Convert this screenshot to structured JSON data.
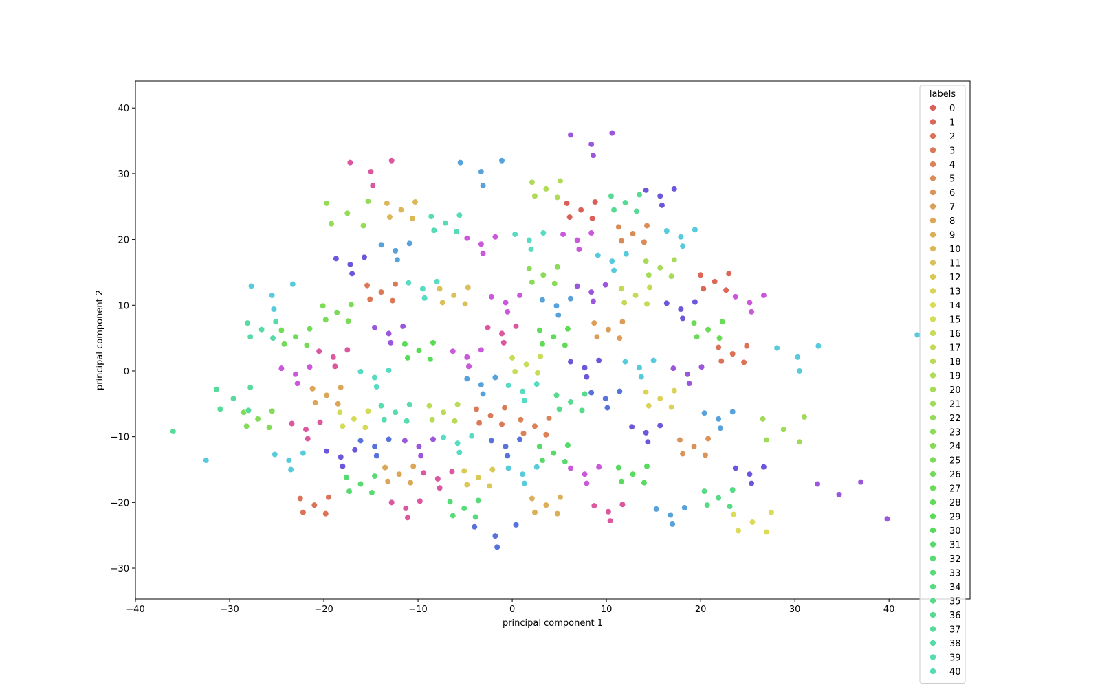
{
  "chart_data": {
    "type": "scatter",
    "xlabel": "principal component 1",
    "ylabel": "principal component 2",
    "xlim": [
      -40,
      48.6
    ],
    "ylim": [
      -34.7,
      44.1
    ],
    "xticks": [
      {
        "value": -40,
        "label": "−40"
      },
      {
        "value": -30,
        "label": "−30"
      },
      {
        "value": -20,
        "label": "−20"
      },
      {
        "value": -10,
        "label": "−10"
      },
      0,
      10,
      20,
      30,
      40
    ],
    "yticks": [
      {
        "value": -30,
        "label": "−30"
      },
      {
        "value": -20,
        "label": "−20"
      },
      {
        "value": -10,
        "label": "−10"
      },
      0,
      10,
      20,
      30,
      40
    ],
    "legend_title": "labels",
    "legend": "upper right",
    "series": [
      {
        "name": "0",
        "color": "#db5f57",
        "x": [
          7.3,
          8.8,
          5.8,
          8.5,
          6.1
        ],
        "y": [
          24.5,
          25.7,
          25.5,
          23.2,
          23.4
        ]
      },
      {
        "name": "1",
        "color": "#db6857",
        "x": [
          21.5,
          23,
          20,
          22.7,
          20.3
        ],
        "y": [
          13.6,
          14.8,
          14.6,
          12.3,
          12.5
        ]
      },
      {
        "name": "2",
        "color": "#db7157",
        "x": [
          23.4,
          24.9,
          21.9,
          24.6,
          22.2,
          -21,
          -19.5,
          -22.5,
          -19.8,
          -22.2
        ],
        "y": [
          2.6,
          3.8,
          3.6,
          1.3,
          1.5,
          -20.4,
          -19.2,
          -19.4,
          -21.7,
          -21.5
        ]
      },
      {
        "name": "3",
        "color": "#db7957",
        "x": [
          -2.3,
          -0.8,
          -3.8,
          -1.1,
          -3.5,
          -13.9,
          -12.4,
          -15.4,
          -12.7,
          -15.1
        ],
        "y": [
          -6.8,
          -5.6,
          -5.8,
          -8.1,
          -7.9,
          12,
          13.2,
          13,
          10.7,
          10.9
        ]
      },
      {
        "name": "4",
        "color": "#db8257",
        "x": [
          2.4,
          3.9,
          0.9,
          3.6,
          1.2
        ],
        "y": [
          -8.4,
          -7.2,
          -7.4,
          -9.7,
          -9.5
        ]
      },
      {
        "name": "5",
        "color": "#db8b57",
        "x": [
          12.8,
          14.3,
          11.3,
          14,
          11.6
        ],
        "y": [
          20.9,
          22.1,
          21.9,
          19.6,
          19.8
        ]
      },
      {
        "name": "6",
        "color": "#db9457",
        "x": [
          19.3,
          20.8,
          17.8,
          20.5,
          18.1
        ],
        "y": [
          -11.5,
          -10.3,
          -10.5,
          -12.8,
          -12.6
        ]
      },
      {
        "name": "7",
        "color": "#db9d57",
        "x": [
          10.2,
          11.7,
          8.7,
          11.4,
          9
        ],
        "y": [
          6.3,
          7.5,
          7.3,
          5,
          5.2
        ]
      },
      {
        "name": "8",
        "color": "#dba657",
        "x": [
          -12,
          -10.5,
          -13.5,
          -10.8,
          -13.2,
          -19.7,
          -18.2,
          -21.2,
          -18.5,
          -20.9
        ],
        "y": [
          -15.7,
          -14.5,
          -14.7,
          -17,
          -16.8,
          -3.7,
          -2.5,
          -2.7,
          -5,
          -4.8
        ]
      },
      {
        "name": "9",
        "color": "#dbaf57",
        "x": [
          3.6,
          5.1,
          2.1,
          4.8,
          2.4
        ],
        "y": [
          -20.4,
          -19.2,
          -19.4,
          -21.7,
          -21.5
        ]
      },
      {
        "name": "10",
        "color": "#dbb757",
        "x": [
          -11.8,
          -10.3,
          -13.3,
          -10.6,
          -13
        ],
        "y": [
          24.5,
          25.7,
          25.5,
          23.2,
          23.4
        ]
      },
      {
        "name": "11",
        "color": "#dbc057",
        "x": [
          -6.2,
          -4.7,
          -7.7,
          -5,
          -7.4
        ],
        "y": [
          11.5,
          12.7,
          12.5,
          10.2,
          10.4
        ]
      },
      {
        "name": "12",
        "color": "#dbc957",
        "x": [
          -3.6,
          -2.1,
          -5.1,
          -2.4,
          -4.8
        ],
        "y": [
          -16.2,
          -15,
          -15.2,
          -17.5,
          -17.3
        ]
      },
      {
        "name": "13",
        "color": "#dbd257",
        "x": [
          15.7,
          17.2,
          14.2,
          16.9,
          14.5
        ],
        "y": [
          -4.2,
          -3,
          -3.2,
          -5.5,
          -5.3
        ]
      },
      {
        "name": "14",
        "color": "#dbdb57",
        "x": [
          25.5,
          27.5,
          23.5,
          27,
          24
        ],
        "y": [
          -23,
          -21.5,
          -21.8,
          -24.5,
          -24.3
        ]
      },
      {
        "name": "15",
        "color": "#d3db57",
        "x": [
          -16.8,
          -15.3,
          -18.3,
          -15.6,
          -18
        ],
        "y": [
          -7.3,
          -6.1,
          -6.3,
          -8.6,
          -8.4
        ]
      },
      {
        "name": "16",
        "color": "#cadb57",
        "x": [
          1.5,
          3,
          0,
          2.7,
          0.3
        ],
        "y": [
          1,
          2.2,
          2,
          -0.3,
          -0.1
        ]
      },
      {
        "name": "17",
        "color": "#c1db57",
        "x": [
          13.1,
          14.6,
          11.6,
          14.3,
          11.9
        ],
        "y": [
          11.5,
          12.7,
          12.5,
          10.2,
          10.4
        ]
      },
      {
        "name": "18",
        "color": "#b9db57",
        "x": [
          -7.3,
          -5.8,
          -8.8,
          -6.1,
          -8.5
        ],
        "y": [
          -6.3,
          -5.1,
          -5.3,
          -7.6,
          -7.4
        ]
      },
      {
        "name": "19",
        "color": "#b0db57",
        "x": [
          3.6,
          5.1,
          2.1,
          4.8,
          2.4
        ],
        "y": [
          27.7,
          28.9,
          28.7,
          26.4,
          26.6
        ]
      },
      {
        "name": "20",
        "color": "#a7db57",
        "x": [
          15.7,
          17.2,
          14.2,
          16.9,
          14.5
        ],
        "y": [
          15.7,
          16.9,
          16.7,
          14.4,
          14.6
        ]
      },
      {
        "name": "21",
        "color": "#9edb57",
        "x": [
          28.8,
          31,
          26.6,
          30.5,
          27
        ],
        "y": [
          -8.9,
          -7,
          -7.3,
          -10.8,
          -10.5
        ]
      },
      {
        "name": "22",
        "color": "#95db57",
        "x": [
          -17.5,
          -15.3,
          -19.7,
          -15.8,
          -19.2
        ],
        "y": [
          24,
          25.8,
          25.5,
          22.1,
          22.4
        ]
      },
      {
        "name": "23",
        "color": "#8cdb57",
        "x": [
          3.3,
          4.8,
          1.8,
          4.5,
          2.1
        ],
        "y": [
          14.6,
          15.8,
          15.6,
          13.3,
          13.5
        ]
      },
      {
        "name": "24",
        "color": "#83db57",
        "x": [
          -27,
          -25.5,
          -28.5,
          -25.8,
          -28.2
        ],
        "y": [
          -7.3,
          -6.1,
          -6.3,
          -8.6,
          -8.4
        ]
      },
      {
        "name": "25",
        "color": "#7bdb57",
        "x": [
          -18.6,
          -17.1,
          -20.1,
          -17.4,
          -19.8
        ],
        "y": [
          8.9,
          10.1,
          9.9,
          7.6,
          7.8
        ]
      },
      {
        "name": "26",
        "color": "#72db57",
        "x": [
          -23,
          -21.5,
          -24.5,
          -21.8,
          -24.2
        ],
        "y": [
          5.2,
          6.4,
          6.2,
          3.9,
          4.1
        ]
      },
      {
        "name": "27",
        "color": "#69db57",
        "x": [
          20.8,
          22.3,
          19.3,
          22,
          19.6
        ],
        "y": [
          6.3,
          7.5,
          7.3,
          5,
          5.2
        ]
      },
      {
        "name": "28",
        "color": "#60db57",
        "x": [
          4.4,
          5.9,
          2.9,
          5.6,
          3.2
        ],
        "y": [
          5.2,
          6.4,
          6.2,
          3.9,
          4.1
        ]
      },
      {
        "name": "29",
        "color": "#58db57",
        "x": [
          -9.9,
          -8.4,
          -11.4,
          -8.7,
          -11.1
        ],
        "y": [
          3.1,
          4.3,
          4.1,
          1.8,
          2
        ]
      },
      {
        "name": "30",
        "color": "#57db5f",
        "x": [
          12.8,
          14.3,
          11.3,
          14,
          11.6
        ],
        "y": [
          -15.7,
          -14.5,
          -14.7,
          -17,
          -16.8
        ]
      },
      {
        "name": "31",
        "color": "#57db68",
        "x": [
          4.4,
          5.9,
          2.9,
          5.6,
          3.2
        ],
        "y": [
          -12.5,
          -11.3,
          -11.5,
          -13.8,
          -13.6
        ]
      },
      {
        "name": "32",
        "color": "#57db71",
        "x": [
          -16.1,
          -14.6,
          -17.6,
          -14.9,
          -17.3
        ],
        "y": [
          -17.2,
          -16,
          -16.2,
          -18.5,
          -18.3
        ]
      },
      {
        "name": "33",
        "color": "#57db79",
        "x": [
          -5.1,
          -3.6,
          -6.6,
          -3.9,
          -6.3
        ],
        "y": [
          -20.9,
          -19.7,
          -19.9,
          -22.2,
          -22
        ]
      },
      {
        "name": "34",
        "color": "#57db82",
        "x": [
          21.9,
          23.4,
          20.4,
          23.1,
          20.7
        ],
        "y": [
          -19.3,
          -18.1,
          -18.3,
          -20.6,
          -20.4
        ]
      },
      {
        "name": "35",
        "color": "#57db8b",
        "x": [
          6.2,
          7.7,
          4.7,
          7.4,
          5
        ],
        "y": [
          -4.7,
          -3.5,
          -3.7,
          -6,
          -5.8
        ]
      },
      {
        "name": "36",
        "color": "#57db94",
        "x": [
          12,
          13.5,
          10.5,
          13.2,
          10.8
        ],
        "y": [
          25.6,
          26.8,
          26.6,
          24.3,
          24.5
        ]
      },
      {
        "name": "37",
        "color": "#57db9d",
        "x": [
          -29.6,
          -27.8,
          -31.4,
          -28,
          -31,
          -36
        ],
        "y": [
          -4.2,
          -2.5,
          -2.8,
          -6,
          -5.8,
          -9.2
        ]
      },
      {
        "name": "38",
        "color": "#57dba6",
        "x": [
          -26.6,
          -25.1,
          -28.1,
          -25.4,
          -27.8
        ],
        "y": [
          6.3,
          7.5,
          7.3,
          5,
          5.2
        ]
      },
      {
        "name": "39",
        "color": "#57dbaf",
        "x": [
          -12.4,
          -10.9,
          -13.9,
          -11.2,
          -13.6
        ],
        "y": [
          -6.3,
          -5.1,
          -5.3,
          -7.6,
          -7.4
        ]
      },
      {
        "name": "40",
        "color": "#57dbb7",
        "x": [
          -7.1,
          -5.6,
          -8.6,
          -5.9,
          -8.3
        ],
        "y": [
          22.5,
          23.7,
          23.5,
          21.2,
          21.4
        ]
      },
      {
        "color": "#57dbc2",
        "x": [
          -9.5,
          -8,
          -11,
          -9.3,
          1.8,
          3.3,
          0.3,
          2,
          -5.8,
          -4.3,
          -7.3,
          -5.6,
          -14.6,
          -13.1,
          -16.1,
          -14.4,
          1.1,
          2.6,
          -0.4,
          1.3
        ],
        "y": [
          12.5,
          13.6,
          13.4,
          11.1,
          19.9,
          21,
          20.8,
          18.5,
          -11,
          -9.9,
          -10.1,
          -12.4,
          -1,
          0.1,
          -0.1,
          -2.4,
          -3.1,
          -2,
          -2.2,
          -4.5
        ]
      },
      {
        "color": "#57cbdb",
        "x": [
          10.6,
          12.1,
          9.1,
          10.8,
          17.9,
          19.4,
          16.4,
          18.1,
          13.5,
          15,
          12,
          13.7,
          1.1,
          2.6,
          -0.4,
          1.3,
          -23.7,
          -22.2,
          -25.2,
          -23.5,
          -25.5,
          -23.3,
          -27.7,
          -25.3,
          30.3,
          32.5,
          28.1,
          30.5,
          43,
          -32.5
        ],
        "y": [
          16.7,
          17.8,
          17.6,
          15.3,
          20.4,
          21.5,
          21.3,
          19,
          0.5,
          1.6,
          1.4,
          -0.9,
          -15.7,
          -14.6,
          -14.8,
          -17.1,
          -13.6,
          -12.5,
          -12.7,
          -15,
          11.5,
          13.2,
          12.9,
          9.4,
          2.1,
          3.8,
          3.5,
          0,
          5.5,
          -13.6
        ]
      },
      {
        "color": "#57a2db",
        "x": [
          -12.4,
          -10.9,
          -13.9,
          -12.2,
          4.7,
          6.2,
          3.2,
          4.9,
          -3.3,
          -1.8,
          -4.8,
          -3.1,
          21.9,
          23.4,
          20.4,
          22.1,
          16.8,
          18.3,
          15.3,
          17,
          -3.3,
          -1.1,
          -5.5,
          -3.1
        ],
        "y": [
          18.3,
          19.4,
          19.2,
          16.9,
          9.9,
          11,
          10.8,
          8.5,
          -2.1,
          -1,
          -1.2,
          -3.5,
          -7.3,
          -6.2,
          -6.4,
          -8.7,
          -21.9,
          -20.8,
          -21,
          -23.3,
          30.3,
          32,
          31.7,
          28.2
        ]
      },
      {
        "color": "#5773db",
        "x": [
          9.9,
          11.4,
          8.4,
          10.1,
          -0.7,
          0.8,
          -2.2,
          -0.5,
          -14.6,
          -13.1,
          -16.1,
          -14.4,
          -1.8,
          0.4,
          -4,
          -1.6
        ],
        "y": [
          -4.2,
          -3.1,
          -3.3,
          -5.6,
          -11.5,
          -10.4,
          -10.6,
          -12.9,
          -11.5,
          -10.4,
          -10.6,
          -12.9,
          -25.1,
          -23.4,
          -23.7,
          -26.8
        ]
      },
      {
        "color": "#6a57db",
        "x": [
          -17.2,
          -15.7,
          -18.7,
          -17,
          7.7,
          9.2,
          6.2,
          7.9,
          14.2,
          15.7,
          12.7,
          14.4,
          -18.2,
          -16.7,
          -19.7,
          -18,
          17.9,
          19.4,
          16.4,
          18.1,
          25.2,
          26.7,
          23.7,
          25.4,
          15.7,
          17.2,
          14.2,
          15.9
        ],
        "y": [
          16.2,
          17.3,
          17.1,
          14.8,
          0.5,
          1.6,
          1.4,
          -0.9,
          -9.4,
          -8.3,
          -8.5,
          -10.8,
          -13.1,
          -12,
          -12.2,
          -14.5,
          9.4,
          10.5,
          10.3,
          8,
          -15.7,
          -14.6,
          -14.8,
          -17.1,
          26.6,
          27.7,
          27.5,
          25.2
        ]
      },
      {
        "color": "#9b57db",
        "x": [
          8.4,
          9.9,
          6.9,
          8.6,
          -13.1,
          -11.6,
          -14.6,
          -12.9,
          18.6,
          20.1,
          17.1,
          18.8,
          -9.9,
          -8.4,
          -11.4,
          -9.7,
          8.4,
          10.6,
          6.2,
          8.6,
          34.7,
          37,
          32.4,
          39.8
        ],
        "y": [
          12,
          13.1,
          12.9,
          10.6,
          5.7,
          6.8,
          6.6,
          4.3,
          -0.5,
          0.6,
          0.4,
          -1.9,
          -11.5,
          -10.4,
          -10.6,
          -12.9,
          34.5,
          36.2,
          35.9,
          32.8,
          -18.8,
          -16.9,
          -17.2,
          -22.5
        ]
      },
      {
        "color": "#cb57db",
        "x": [
          -3.3,
          -1.8,
          -4.8,
          -3.1,
          6.9,
          8.4,
          5.4,
          7.1,
          -0.7,
          0.8,
          -2.2,
          -0.5,
          -4.8,
          -3.3,
          -6.3,
          -4.6,
          7.7,
          9.2,
          6.2,
          7.9,
          -23,
          -21.5,
          -24.5,
          -22.8,
          25.2,
          26.7,
          23.7,
          25.4
        ],
        "y": [
          19.3,
          20.4,
          20.2,
          17.9,
          19.9,
          21,
          20.8,
          18.5,
          10.4,
          11.5,
          11.3,
          9,
          2.1,
          3.2,
          3,
          0.7,
          -15.7,
          -14.6,
          -14.8,
          -17.1,
          -0.5,
          0.6,
          0.4,
          -1.9,
          10.4,
          11.5,
          11.3,
          9
        ]
      },
      {
        "color": "#db579f",
        "x": [
          -1.1,
          0.4,
          -2.6,
          -0.9,
          -19,
          -17.5,
          -20.5,
          -18.8,
          -21.9,
          -20.4,
          -23.4,
          -21.7,
          10.2,
          11.7,
          8.7,
          10.4,
          -11.3,
          -9.8,
          -12.8,
          -11.1,
          -15,
          -12.8,
          -17.2,
          -14.8,
          -7.9,
          -6.4,
          -9.4,
          -7.7
        ],
        "y": [
          5.7,
          6.8,
          6.6,
          4.3,
          2.1,
          3.2,
          3,
          0.7,
          -8.9,
          -7.8,
          -8,
          -10.3,
          -21.4,
          -20.3,
          -20.5,
          -22.8,
          -20.9,
          -19.8,
          -20,
          -22.3,
          30.3,
          32,
          31.7,
          28.2,
          -16.4,
          -15.3,
          -15.5,
          -17.8
        ]
      }
    ]
  }
}
